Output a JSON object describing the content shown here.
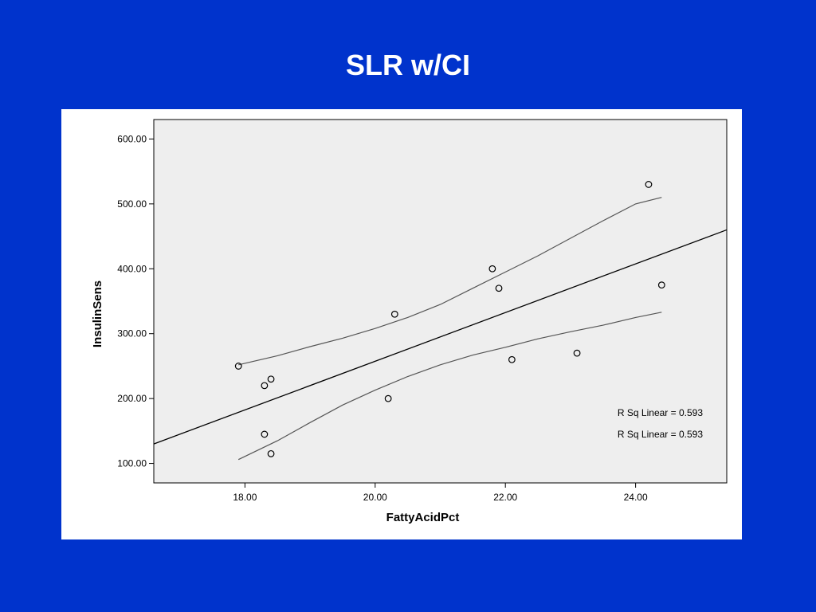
{
  "slide": {
    "title": "SLR w/CI"
  },
  "chart_data": {
    "type": "scatter",
    "title": "",
    "xlabel": "FattyAcidPct",
    "ylabel": "InsulinSens",
    "xlim": [
      16.6,
      25.4
    ],
    "ylim": [
      70,
      630
    ],
    "xticks": [
      18,
      20,
      22,
      24
    ],
    "xtick_labels": [
      "18.00",
      "20.00",
      "22.00",
      "24.00"
    ],
    "yticks": [
      100,
      200,
      300,
      400,
      500,
      600
    ],
    "ytick_labels": [
      "100.00",
      "200.00",
      "300.00",
      "400.00",
      "500.00",
      "600.00"
    ],
    "grid": false,
    "points": [
      {
        "x": 17.9,
        "y": 250
      },
      {
        "x": 18.3,
        "y": 220
      },
      {
        "x": 18.4,
        "y": 230
      },
      {
        "x": 18.3,
        "y": 145
      },
      {
        "x": 18.4,
        "y": 115
      },
      {
        "x": 20.2,
        "y": 200
      },
      {
        "x": 20.3,
        "y": 330
      },
      {
        "x": 21.8,
        "y": 400
      },
      {
        "x": 21.9,
        "y": 370
      },
      {
        "x": 22.1,
        "y": 260
      },
      {
        "x": 23.1,
        "y": 270
      },
      {
        "x": 24.2,
        "y": 530
      },
      {
        "x": 24.4,
        "y": 375
      }
    ],
    "fit_line": {
      "x": [
        16.6,
        25.4
      ],
      "y": [
        130,
        460
      ]
    },
    "ci_upper": {
      "x": [
        17.9,
        18.5,
        19.0,
        19.5,
        20.0,
        20.5,
        21.0,
        21.5,
        22.0,
        22.5,
        23.0,
        23.5,
        24.0,
        24.4
      ],
      "y": [
        252,
        266,
        280,
        293,
        308,
        325,
        345,
        370,
        395,
        420,
        447,
        474,
        500,
        510
      ]
    },
    "ci_lower": {
      "x": [
        17.9,
        18.5,
        19.0,
        19.5,
        20.0,
        20.5,
        21.0,
        21.5,
        22.0,
        22.5,
        23.0,
        23.5,
        24.0,
        24.4
      ],
      "y": [
        106,
        135,
        163,
        190,
        213,
        234,
        252,
        267,
        279,
        292,
        303,
        313,
        325,
        333
      ]
    },
    "legend": [
      "R Sq Linear = 0.593",
      "R Sq Linear = 0.593"
    ],
    "legend_position": "bottom-right",
    "colors": {
      "plot_background": "#eeeeee",
      "frame": "#000000",
      "line": "#000000",
      "ci": "#555555",
      "slide_background": "#0033cc"
    }
  }
}
